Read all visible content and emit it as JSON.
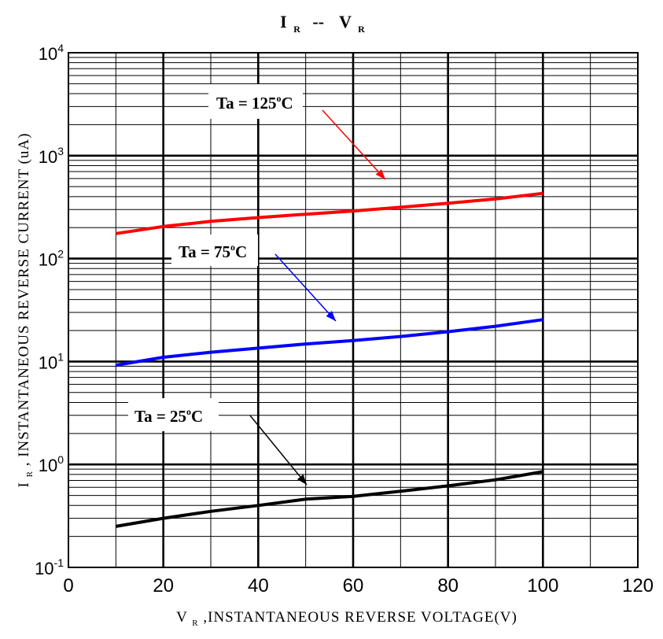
{
  "chart_data": {
    "type": "line",
    "title": {
      "main1": "I",
      "sub1": "R",
      "sep": "--",
      "main2": "V",
      "sub2": "R"
    },
    "xlabel": {
      "main": "V",
      "sub": "R",
      "rest": ",INSTANTANEOUS REVERSE VOLTAGE(V)"
    },
    "ylabel": {
      "main": "I",
      "sub": "R",
      "rest": ", INSTANTANEOUS REVERSE CURRENT (uA)"
    },
    "xlim": [
      0,
      120
    ],
    "ylim": [
      0.1,
      10000
    ],
    "yscale": "log",
    "grid": true,
    "x_ticks": [
      "0",
      "20",
      "40",
      "60",
      "80",
      "100",
      "120"
    ],
    "y_ticks": [
      {
        "base": "10",
        "exp": "-1"
      },
      {
        "base": "10",
        "exp": "0"
      },
      {
        "base": "10",
        "exp": "1"
      },
      {
        "base": "10",
        "exp": "2"
      },
      {
        "base": "10",
        "exp": "3"
      },
      {
        "base": "10",
        "exp": "4"
      }
    ],
    "series": [
      {
        "name": "Ta = 125 °C",
        "label_text": "Ta = 125",
        "label_sup": "o",
        "label_unit": "C",
        "color": "#ff0000",
        "x": [
          10,
          20,
          30,
          40,
          50,
          60,
          70,
          80,
          90,
          100
        ],
        "y": [
          175,
          205,
          230,
          250,
          270,
          290,
          315,
          345,
          380,
          430
        ]
      },
      {
        "name": "Ta = 75 °C",
        "label_text": "Ta = 75",
        "label_sup": "o",
        "label_unit": "C",
        "color": "#0000ff",
        "x": [
          10,
          20,
          30,
          40,
          50,
          60,
          70,
          80,
          90,
          100
        ],
        "y": [
          9.2,
          11,
          12.3,
          13.5,
          14.8,
          16,
          17.5,
          19.5,
          22,
          25.5
        ]
      },
      {
        "name": "Ta = 25 °C",
        "label_text": "Ta = 25",
        "label_sup": "o",
        "label_unit": "C",
        "color": "#000000",
        "x": [
          10,
          20,
          30,
          40,
          50,
          60,
          70,
          80,
          90,
          100
        ],
        "y": [
          0.25,
          0.3,
          0.35,
          0.4,
          0.46,
          0.49,
          0.55,
          0.62,
          0.71,
          0.85
        ]
      }
    ]
  }
}
